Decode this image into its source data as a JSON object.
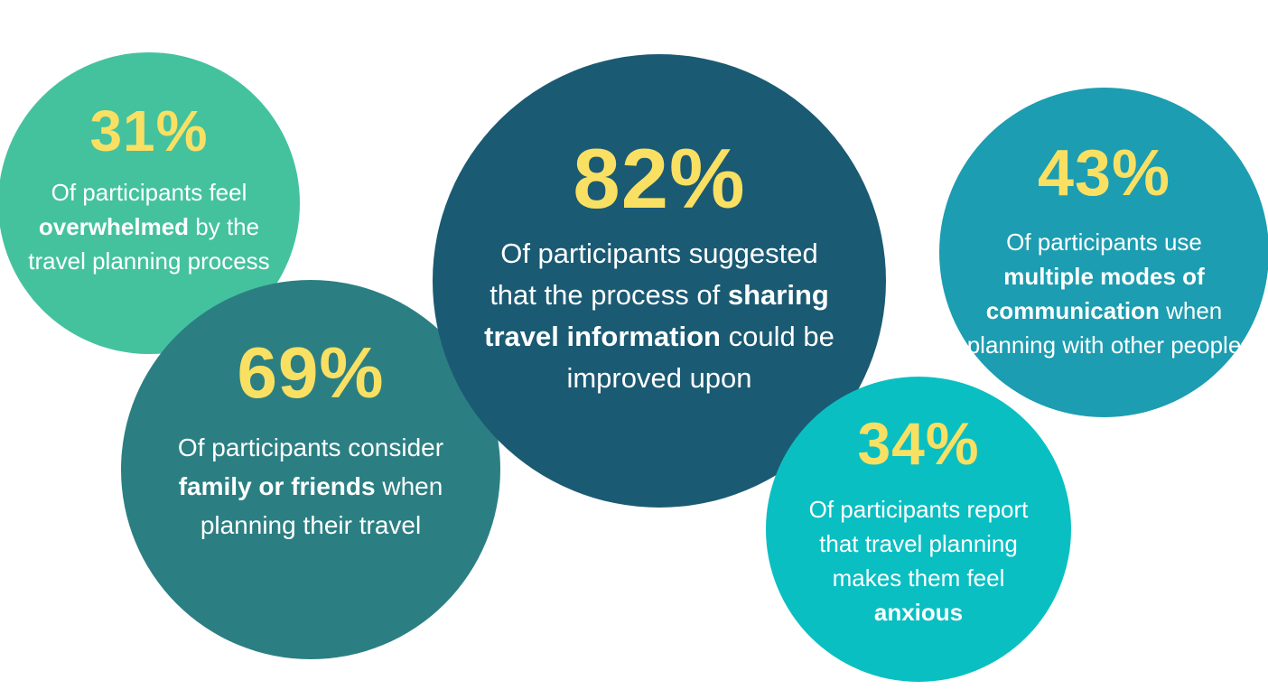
{
  "colors": {
    "highlight": "#f9e063",
    "text": "#ffffff",
    "bubble_31": "#44c29e",
    "bubble_69": "#2b7f82",
    "bubble_82": "#1b5a73",
    "bubble_43": "#1c9db1",
    "bubble_34": "#0abfc2"
  },
  "stats": {
    "s31": {
      "percent": "31%",
      "text_before": "Of participants feel ",
      "bold": "overwhelmed",
      "text_after": " by the travel planning process"
    },
    "s69": {
      "percent": "69%",
      "text_before": "Of participants consider ",
      "bold": "family or friends",
      "text_after": " when planning their travel"
    },
    "s82": {
      "percent": "82%",
      "text_before": "Of participants suggested that the process of ",
      "bold": "sharing travel information",
      "text_after": " could be improved upon"
    },
    "s43": {
      "percent": "43%",
      "text_before": "Of participants use ",
      "bold": "multiple modes of communication",
      "text_after": " when planning with other people"
    },
    "s34": {
      "percent": "34%",
      "text_before": "Of participants report that travel planning makes them feel ",
      "bold": "anxious",
      "text_after": ""
    }
  }
}
